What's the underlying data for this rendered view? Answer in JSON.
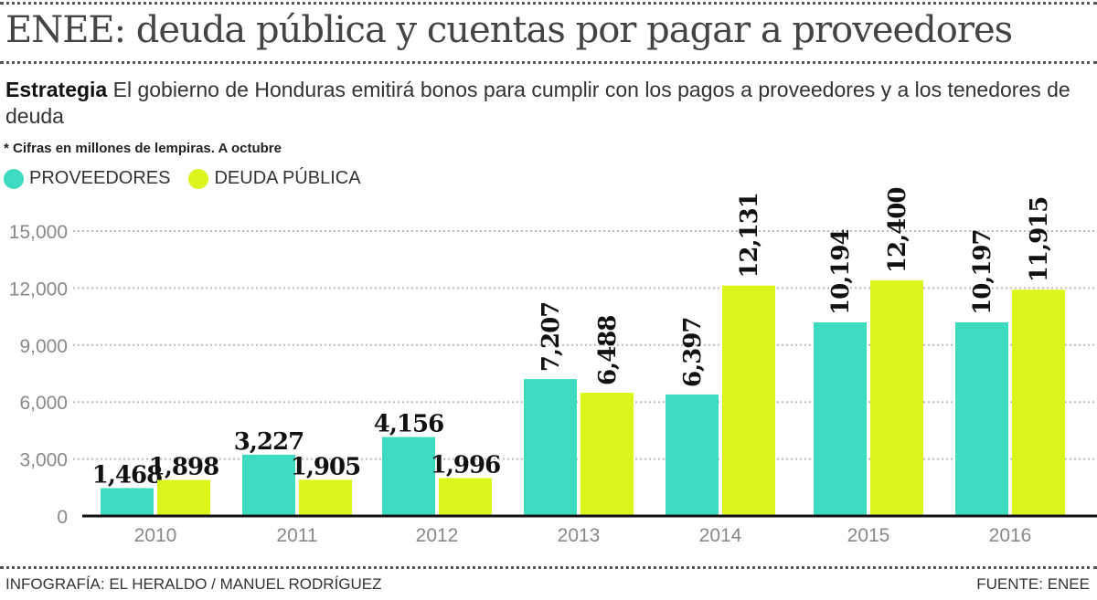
{
  "title": "ENEE: deuda pública y cuentas por pagar a proveedores",
  "subtitle_bold": "Estrategia",
  "subtitle": "El gobierno de Honduras emitirá bonos para cumplir con los pagos a proveedores y a los tenedores de deuda",
  "note": "* Cifras en millones de lempiras.  A octubre",
  "footer_left": "INFOGRAFÍA: EL HERALDO / MANUEL RODRÍGUEZ",
  "footer_right": "FUENTE: ENEE",
  "chart_data": {
    "type": "bar",
    "categories": [
      "2010",
      "2011",
      "2012",
      "2013",
      "2014",
      "2015",
      "2016"
    ],
    "series": [
      {
        "name": "PROVEEDORES",
        "color": "#3ddcc0",
        "values": [
          1468,
          3227,
          4156,
          7207,
          6397,
          10194,
          10197
        ],
        "labels": [
          "1,468",
          "3,227",
          "4,156",
          "7,207",
          "6,397",
          "10,194",
          "10,197"
        ]
      },
      {
        "name": "DEUDA PÚBLICA",
        "color": "#dcf51c",
        "values": [
          1898,
          1905,
          1996,
          6488,
          12131,
          12400,
          11915
        ],
        "labels": [
          "1,898",
          "1,905",
          "1,996",
          "6,488",
          "12,131",
          "12,400",
          "11,915"
        ]
      }
    ],
    "yticks": [
      0,
      3000,
      6000,
      9000,
      12000,
      15000
    ],
    "ytick_labels": [
      "0",
      "3,000",
      "6,000",
      "9,000",
      "12,000",
      "15,000"
    ],
    "ylim": [
      0,
      15000
    ],
    "grid": true,
    "legend": "top-left"
  }
}
